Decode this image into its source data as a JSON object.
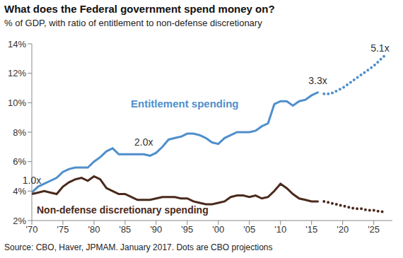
{
  "chart_data": {
    "type": "line",
    "title": "What does the Federal government spend money on?",
    "subtitle": "% of GDP, with ratio of entitlement to non-defense discretionary",
    "source": "Source: CBO, Haver, JPMAM. January 2017. Dots are CBO projections",
    "x": [
      1970,
      1971,
      1972,
      1973,
      1974,
      1975,
      1976,
      1977,
      1978,
      1979,
      1980,
      1981,
      1982,
      1983,
      1984,
      1985,
      1986,
      1987,
      1988,
      1989,
      1990,
      1991,
      1992,
      1993,
      1994,
      1995,
      1996,
      1997,
      1998,
      1999,
      2000,
      2001,
      2002,
      2003,
      2004,
      2005,
      2006,
      2007,
      2008,
      2009,
      2010,
      2011,
      2012,
      2013,
      2014,
      2015,
      2016,
      2017,
      2018,
      2019,
      2020,
      2021,
      2022,
      2023,
      2024,
      2025,
      2026,
      2027
    ],
    "xlim": [
      1970,
      2028
    ],
    "xticks": [
      {
        "value": 1970,
        "label": "'70"
      },
      {
        "value": 1975,
        "label": "'75"
      },
      {
        "value": 1980,
        "label": "'80"
      },
      {
        "value": 1985,
        "label": "'85"
      },
      {
        "value": 1990,
        "label": "'90"
      },
      {
        "value": 1995,
        "label": "'95"
      },
      {
        "value": 2000,
        "label": "'00"
      },
      {
        "value": 2005,
        "label": "'05"
      },
      {
        "value": 2010,
        "label": "'10"
      },
      {
        "value": 2015,
        "label": "'15"
      },
      {
        "value": 2020,
        "label": "'20"
      },
      {
        "value": 2025,
        "label": "'25"
      }
    ],
    "ylim": [
      2,
      14
    ],
    "yticks": [
      {
        "value": 2,
        "label": "2%"
      },
      {
        "value": 4,
        "label": "4%"
      },
      {
        "value": 6,
        "label": "6%"
      },
      {
        "value": 8,
        "label": "8%"
      },
      {
        "value": 10,
        "label": "10%"
      },
      {
        "value": 12,
        "label": "12%"
      },
      {
        "value": 14,
        "label": "14%"
      }
    ],
    "grid": false,
    "series": [
      {
        "name": "Entitlement spending",
        "color": "#4f8fcc",
        "line_style": "solid",
        "values": [
          3.9,
          4.3,
          4.5,
          4.7,
          4.9,
          5.3,
          5.5,
          5.6,
          5.6,
          5.6,
          6.0,
          6.3,
          6.7,
          6.9,
          6.5,
          6.5,
          6.5,
          6.5,
          6.5,
          6.4,
          6.6,
          7.0,
          7.5,
          7.6,
          7.7,
          7.9,
          7.9,
          7.8,
          7.6,
          7.3,
          7.2,
          7.6,
          7.8,
          8.0,
          8.0,
          8.0,
          8.1,
          8.4,
          8.6,
          9.9,
          10.1,
          10.1,
          9.8,
          10.1,
          10.2,
          10.5,
          10.7,
          null,
          null,
          null,
          null,
          null,
          null,
          null,
          null,
          null,
          null,
          null
        ],
        "projection": {
          "line_style": "dotted",
          "values": [
            null,
            null,
            null,
            null,
            null,
            null,
            null,
            null,
            null,
            null,
            null,
            null,
            null,
            null,
            null,
            null,
            null,
            null,
            null,
            null,
            null,
            null,
            null,
            null,
            null,
            null,
            null,
            null,
            null,
            null,
            null,
            null,
            null,
            null,
            null,
            null,
            null,
            null,
            null,
            null,
            null,
            null,
            null,
            null,
            null,
            null,
            null,
            10.6,
            10.6,
            10.8,
            11.0,
            11.3,
            11.6,
            11.9,
            12.2,
            12.5,
            12.9,
            13.3
          ]
        }
      },
      {
        "name": "Non-defense discretionary spending",
        "color": "#4a2a1c",
        "line_style": "solid",
        "values": [
          3.8,
          3.9,
          4.0,
          3.9,
          3.8,
          4.3,
          4.6,
          4.8,
          4.9,
          4.7,
          5.0,
          4.8,
          4.2,
          4.0,
          3.8,
          3.8,
          3.6,
          3.4,
          3.4,
          3.4,
          3.5,
          3.6,
          3.6,
          3.6,
          3.5,
          3.5,
          3.3,
          3.2,
          3.1,
          3.1,
          3.2,
          3.3,
          3.6,
          3.7,
          3.7,
          3.6,
          3.7,
          3.5,
          3.6,
          4.0,
          4.5,
          4.2,
          3.8,
          3.5,
          3.4,
          3.3,
          3.3,
          null,
          null,
          null,
          null,
          null,
          null,
          null,
          null,
          null,
          null,
          null
        ],
        "projection": {
          "line_style": "dotted",
          "values": [
            null,
            null,
            null,
            null,
            null,
            null,
            null,
            null,
            null,
            null,
            null,
            null,
            null,
            null,
            null,
            null,
            null,
            null,
            null,
            null,
            null,
            null,
            null,
            null,
            null,
            null,
            null,
            null,
            null,
            null,
            null,
            null,
            null,
            null,
            null,
            null,
            null,
            null,
            null,
            null,
            null,
            null,
            null,
            null,
            null,
            null,
            null,
            3.3,
            3.2,
            3.1,
            3.0,
            2.9,
            2.8,
            2.8,
            2.7,
            2.7,
            2.6,
            2.6
          ]
        }
      }
    ],
    "annotations": [
      {
        "x": 1970,
        "value": 1.0,
        "label": "1.0x"
      },
      {
        "x": 1988,
        "value": 2.0,
        "label": "2.0x"
      },
      {
        "x": 2016,
        "value": 3.3,
        "label": "3.3x"
      },
      {
        "x": 2026,
        "value": 5.1,
        "label": "5.1x"
      }
    ]
  }
}
